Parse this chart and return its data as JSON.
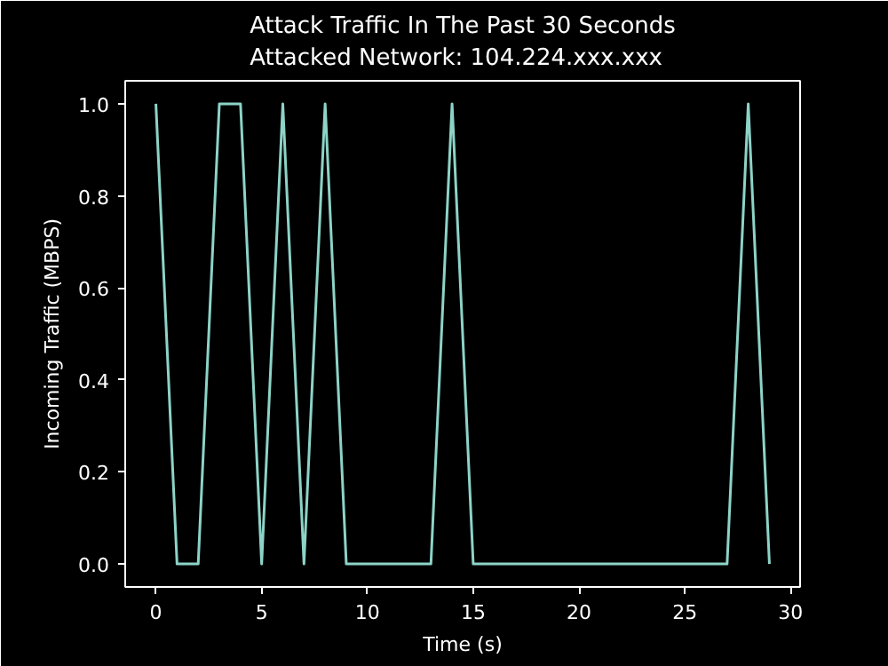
{
  "chart_data": {
    "type": "line",
    "title": "Attack Traffic In The Past 30 Seconds\nAttacked Network: 104.224.xxx.xxx",
    "xlabel": "Time (s)",
    "ylabel": "Incoming Traffic (MBPS)",
    "x": [
      0,
      1,
      2,
      3,
      4,
      5,
      6,
      7,
      8,
      9,
      10,
      11,
      12,
      13,
      14,
      15,
      16,
      17,
      18,
      19,
      20,
      21,
      22,
      23,
      24,
      25,
      26,
      27,
      28,
      29
    ],
    "series": [
      {
        "color": "#8dd3c7",
        "values": [
          1,
          0,
          0,
          1,
          1,
          0,
          1,
          0,
          1,
          0,
          0,
          0,
          0,
          0,
          1,
          0,
          0,
          0,
          0,
          0,
          0,
          0,
          0,
          0,
          0,
          0,
          0,
          0,
          1,
          0
        ]
      }
    ],
    "xlim": [
      -1.45,
      30.45
    ],
    "ylim": [
      -0.05,
      1.05
    ],
    "xticks": [
      0,
      5,
      10,
      15,
      20,
      25,
      30
    ],
    "yticks": [
      {
        "value": 0,
        "label": "0.0"
      },
      {
        "value": 0.2,
        "label": "0.2"
      },
      {
        "value": 0.4,
        "label": "0.4"
      },
      {
        "value": 0.6,
        "label": "0.6"
      },
      {
        "value": 0.8,
        "label": "0.8"
      },
      {
        "value": 1,
        "label": "1.0"
      }
    ],
    "grid": false,
    "marker": "none",
    "line_style": "solid"
  }
}
